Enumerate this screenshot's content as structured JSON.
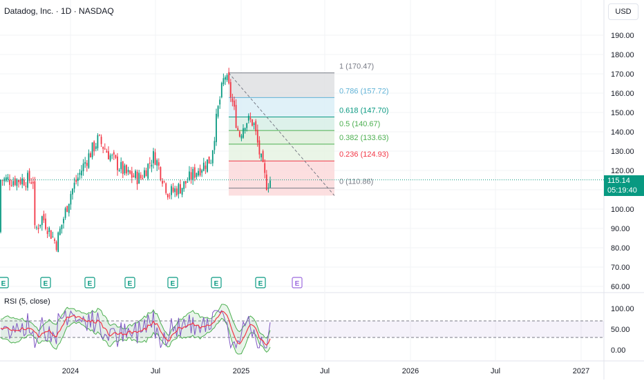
{
  "header": {
    "title": "Datadog, Inc. · 1D · NASDAQ",
    "currency_button": "USD"
  },
  "price_scale": {
    "labels": [
      "190.00",
      "180.00",
      "170.00",
      "160.00",
      "150.00",
      "140.00",
      "130.00",
      "120.00",
      "110.00",
      "100.00",
      "90.00",
      "80.00",
      "70.00",
      "60.00"
    ],
    "current_price": "115.14",
    "countdown": "05:19:40",
    "current_color": "#089981"
  },
  "time_axis": {
    "labels": [
      "2024",
      "Jul",
      "2025",
      "Jul",
      "2026",
      "Jul",
      "2027"
    ]
  },
  "earnings": {
    "marker_letter": "E",
    "count_past": 7,
    "count_future": 1,
    "past_color": "#089981",
    "future_color": "#9c6ade"
  },
  "fibonacci": {
    "levels": [
      {
        "label": "1 (170.47)",
        "ratio": 1,
        "price": 170.47,
        "color": "#787b86",
        "fill": "#dfe0e3"
      },
      {
        "label": "0.786 (157.72)",
        "ratio": 0.786,
        "price": 157.72,
        "color": "#5fb2d6",
        "fill": "#dbeef7"
      },
      {
        "label": "0.618 (147.70)",
        "ratio": 0.618,
        "price": 147.7,
        "color": "#089981",
        "fill": "#d7efe6"
      },
      {
        "label": "0.5 (140.67)",
        "ratio": 0.5,
        "price": 140.67,
        "color": "#4caf50",
        "fill": "#deefdb"
      },
      {
        "label": "0.382 (133.63)",
        "ratio": 0.382,
        "price": 133.63,
        "color": "#4caf50",
        "fill": "#e6f3e3"
      },
      {
        "label": "0.236 (124.93)",
        "ratio": 0.236,
        "price": 124.93,
        "color": "#f23645",
        "fill": "#fcd9db"
      },
      {
        "label": "0 (110.86)",
        "ratio": 0,
        "price": 110.86,
        "color": "#787b86",
        "fill": "#fcd9db"
      }
    ]
  },
  "rsi": {
    "title": "RSI (5, close)",
    "labels": [
      "100.00",
      "50.00",
      "0.00"
    ],
    "upper_band": 70,
    "lower_band": 30,
    "band_color": "#7e57c2",
    "rsi_color": "#7e57c2",
    "ma_color": "#f23645",
    "bb_color": "#4caf50"
  },
  "chart_data": {
    "type": "candlestick",
    "title": "Datadog, Inc. · 1D · NASDAQ",
    "ylim": [
      57,
      197
    ],
    "x": [
      "2023-10-15",
      "2023-11-01",
      "2023-12-01",
      "2024-01-01",
      "2024-02-01",
      "2024-03-01",
      "2024-04-01",
      "2024-05-01",
      "2024-06-01",
      "2024-07-01",
      "2024-08-01",
      "2024-09-01",
      "2024-10-01",
      "2024-11-01",
      "2024-11-15",
      "2024-12-01",
      "2024-12-15",
      "2025-01-01",
      "2025-01-15",
      "2025-02-01",
      "2025-02-15",
      "2025-03-01",
      "2025-03-10"
    ],
    "close": [
      88,
      96,
      82,
      108,
      124,
      136,
      126,
      118,
      116,
      128,
      108,
      112,
      120,
      126,
      150,
      170,
      158,
      138,
      146,
      145,
      128,
      113,
      115.14
    ],
    "current_price": 115.14,
    "rsi_ylim": [
      -15,
      115
    ]
  }
}
